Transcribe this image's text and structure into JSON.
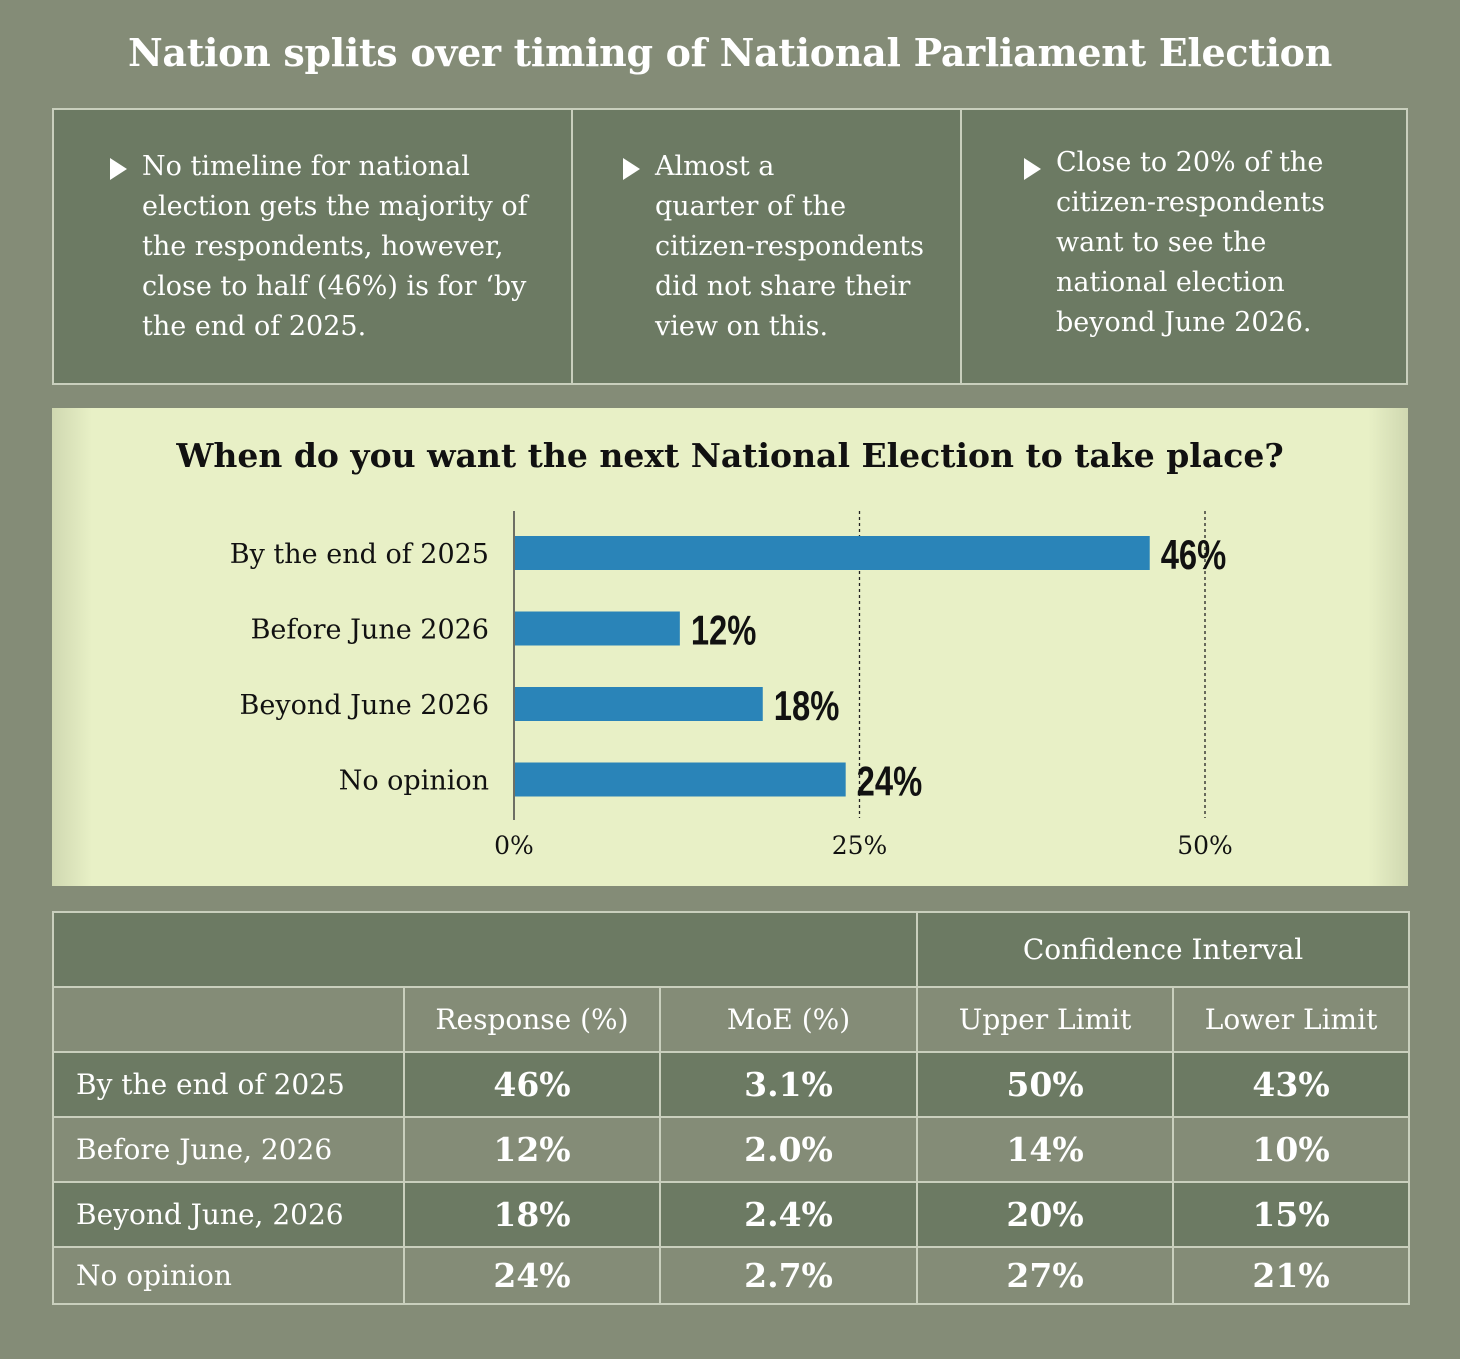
{
  "title": "Nation splits over timing of National Parliament Election",
  "highlights": [
    "No timeline for national election gets the majority of the respondents, however, close to half (46%) is for ‘by the end of 2025.",
    "Almost a quarter of the citizen-respondents did not share their view on this.",
    "Close to 20% of the citizen-respondents want to see the national election beyond June 2026."
  ],
  "highlight_lines": [
    [
      "No timeline for national",
      "election gets the majority of",
      "the respondents, however,",
      "close to half (46%) is for ‘by",
      "the end of 2025."
    ],
    [
      "Almost a",
      "quarter of the",
      "citizen-respondents",
      "did not share their",
      "view on this."
    ],
    [
      "Close to 20% of the",
      "citizen-respondents",
      "want to see the",
      "national election",
      "beyond June 2026."
    ]
  ],
  "chart_data": {
    "type": "bar",
    "orientation": "horizontal",
    "title": "When do you want the next National Election to take place?",
    "categories": [
      "By the end of 2025",
      "Before June 2026",
      "Beyond June 2026",
      "No opinion"
    ],
    "values": [
      46,
      12,
      18,
      24
    ],
    "value_labels": [
      "46%",
      "12%",
      "18%",
      "24%"
    ],
    "xlim": [
      0,
      50
    ],
    "xticks": [
      0,
      25,
      50
    ],
    "xtick_labels": [
      "0%",
      "25%",
      "50%"
    ],
    "grid": "dashed vertical lines at 25% and 50%",
    "bar_color": "#2a84b8",
    "xlabel": "",
    "ylabel": ""
  },
  "table": {
    "group_header": "Confidence Interval",
    "columns": [
      "Response (%)",
      "MoE (%)",
      "Upper Limit",
      "Lower Limit"
    ],
    "rows": [
      {
        "label": "By the end of 2025",
        "response": "46%",
        "moe": "3.1%",
        "upper": "50%",
        "lower": "43%"
      },
      {
        "label": "Before June, 2026",
        "response": "12%",
        "moe": "2.0%",
        "upper": "14%",
        "lower": "10%"
      },
      {
        "label": "Beyond June, 2026",
        "response": "18%",
        "moe": "2.4%",
        "upper": "20%",
        "lower": "15%"
      },
      {
        "label": "No opinion",
        "response": "24%",
        "moe": "2.7%",
        "upper": "27%",
        "lower": "21%"
      }
    ]
  },
  "colors": {
    "background": "#848c77",
    "panel_dark": "#6c7a63",
    "chart_background": "#e8f0c6",
    "bar": "#2a84b8"
  }
}
